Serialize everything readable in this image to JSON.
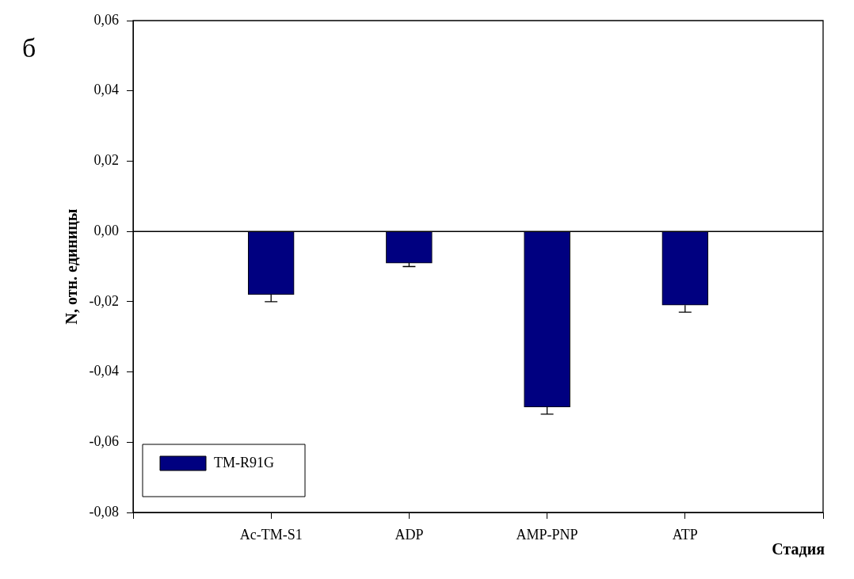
{
  "chart_data": {
    "type": "bar",
    "title": "б",
    "xlabel": "Стадия",
    "ylabel": "N, отн. единицы",
    "categories": [
      null,
      "Ac-TM-S1",
      "ADP",
      "AMP-PNP",
      "ATP",
      null
    ],
    "series": [
      {
        "name": "TM-R91G",
        "color": "#000080",
        "values": [
          null,
          -0.018,
          -0.009,
          -0.05,
          -0.021,
          null
        ],
        "errors": [
          null,
          [
            -0.02,
            -0.018
          ],
          [
            -0.01,
            -0.009
          ],
          [
            -0.052,
            -0.05
          ],
          [
            -0.023,
            -0.021
          ],
          null
        ]
      }
    ],
    "ylim": [
      -0.08,
      0.06
    ],
    "yticks": [
      {
        "value": -0.08,
        "label": "-0,08"
      },
      {
        "value": -0.06,
        "label": "-0,06"
      },
      {
        "value": -0.04,
        "label": "-0,04"
      },
      {
        "value": -0.02,
        "label": "-0,02"
      },
      {
        "value": 0,
        "label": "0,00"
      },
      {
        "value": 0.02,
        "label": "0,02"
      },
      {
        "value": 0.04,
        "label": "0,04"
      },
      {
        "value": 0.06,
        "label": "0,06"
      }
    ],
    "ref_lines": [
      {
        "axis": "y",
        "value": 0,
        "color": "#000000"
      }
    ],
    "grid": false,
    "legend": "bottom left"
  }
}
